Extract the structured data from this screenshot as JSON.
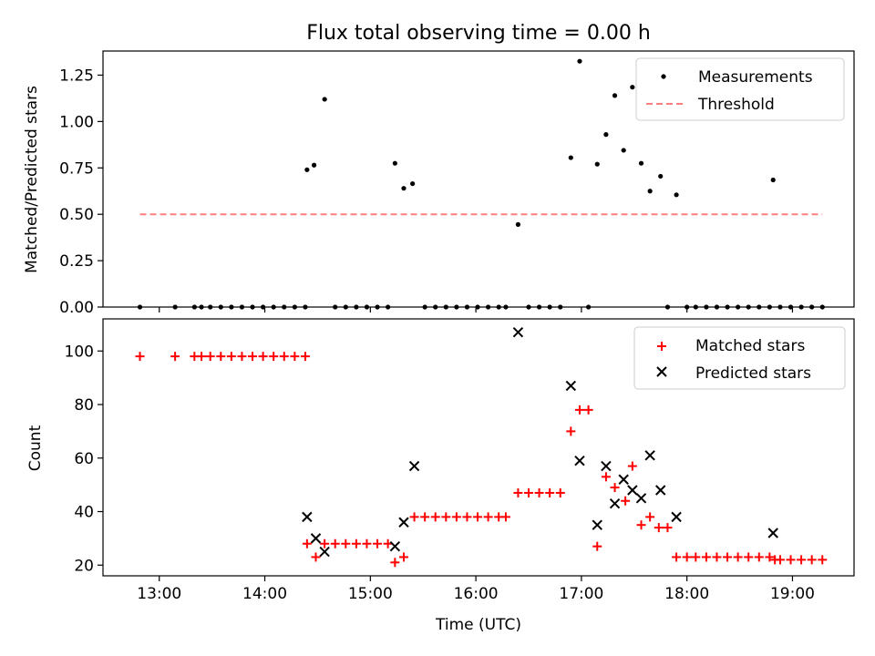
{
  "chart_data": [
    {
      "type": "scatter",
      "title": "Flux total observing time = 0.00 h",
      "ylabel": "Matched/Predicted stars",
      "xlabel": "",
      "xlim": [
        "12:28",
        "19:35"
      ],
      "ylim": [
        0,
        1.38
      ],
      "yticks": [
        0,
        0.25,
        0.5,
        0.75,
        1.0,
        1.25
      ],
      "ytick_labels": [
        "0.00",
        "0.25",
        "0.50",
        "0.75",
        "1.00",
        "1.25"
      ],
      "xticks": [
        "13:00",
        "14:00",
        "15:00",
        "16:00",
        "17:00",
        "18:00",
        "19:00"
      ],
      "grid": false,
      "legend": "top-right",
      "series": [
        {
          "name": "Measurements",
          "marker": "dot",
          "color": "#000000",
          "points": [
            [
              "12:49",
              0
            ],
            [
              "13:09",
              0
            ],
            [
              "13:20",
              0
            ],
            [
              "13:24",
              0
            ],
            [
              "13:29",
              0
            ],
            [
              "13:35",
              0
            ],
            [
              "13:41",
              0
            ],
            [
              "13:47",
              0
            ],
            [
              "13:53",
              0
            ],
            [
              "13:59",
              0
            ],
            [
              "14:05",
              0
            ],
            [
              "14:11",
              0
            ],
            [
              "14:17",
              0
            ],
            [
              "14:23",
              0
            ],
            [
              "14:24",
              0.74
            ],
            [
              "14:28",
              0.765
            ],
            [
              "14:34",
              1.12
            ],
            [
              "14:40",
              0
            ],
            [
              "14:46",
              0
            ],
            [
              "14:52",
              0
            ],
            [
              "14:58",
              0
            ],
            [
              "15:04",
              0
            ],
            [
              "15:10",
              0
            ],
            [
              "15:14",
              0.775
            ],
            [
              "15:19",
              0.64
            ],
            [
              "15:24",
              0.665
            ],
            [
              "15:31",
              0
            ],
            [
              "15:37",
              0
            ],
            [
              "15:43",
              0
            ],
            [
              "15:49",
              0
            ],
            [
              "15:55",
              0
            ],
            [
              "16:01",
              0
            ],
            [
              "16:07",
              0
            ],
            [
              "16:13",
              0
            ],
            [
              "16:17",
              0
            ],
            [
              "16:24",
              0.445
            ],
            [
              "16:30",
              0
            ],
            [
              "16:36",
              0
            ],
            [
              "16:42",
              0
            ],
            [
              "16:48",
              0
            ],
            [
              "16:54",
              0.805
            ],
            [
              "16:59",
              1.325
            ],
            [
              "17:04",
              0
            ],
            [
              "17:09",
              0.77
            ],
            [
              "17:14",
              0.93
            ],
            [
              "17:19",
              1.14
            ],
            [
              "17:24",
              0.845
            ],
            [
              "17:29",
              1.185
            ],
            [
              "17:34",
              0.775
            ],
            [
              "17:39",
              0.625
            ],
            [
              "17:45",
              0.705
            ],
            [
              "17:49",
              0
            ],
            [
              "17:54",
              0.605
            ],
            [
              "18:00",
              0
            ],
            [
              "18:05",
              0
            ],
            [
              "18:11",
              0
            ],
            [
              "18:17",
              0
            ],
            [
              "18:23",
              0
            ],
            [
              "18:29",
              0
            ],
            [
              "18:35",
              0
            ],
            [
              "18:41",
              0
            ],
            [
              "18:47",
              0
            ],
            [
              "18:49",
              0.685
            ],
            [
              "18:53",
              0
            ],
            [
              "18:59",
              0
            ],
            [
              "19:05",
              0
            ],
            [
              "19:11",
              0
            ],
            [
              "19:17",
              0
            ]
          ]
        },
        {
          "name": "Threshold",
          "marker": "dashed-line",
          "color": "#ff7f7f",
          "points": [
            [
              "12:49",
              0.5
            ],
            [
              "19:17",
              0.5
            ]
          ]
        }
      ]
    },
    {
      "type": "scatter",
      "title": "",
      "ylabel": "Count",
      "xlabel": "Time (UTC)",
      "xlim": [
        "12:28",
        "19:35"
      ],
      "ylim": [
        16,
        112
      ],
      "yticks": [
        20,
        40,
        60,
        80,
        100
      ],
      "ytick_labels": [
        "20",
        "40",
        "60",
        "80",
        "100"
      ],
      "xticks": [
        "13:00",
        "14:00",
        "15:00",
        "16:00",
        "17:00",
        "18:00",
        "19:00"
      ],
      "grid": false,
      "legend": "top-right",
      "series": [
        {
          "name": "Matched stars",
          "marker": "plus",
          "color": "#ff0000",
          "points": [
            [
              "12:49",
              98
            ],
            [
              "13:09",
              98
            ],
            [
              "13:20",
              98
            ],
            [
              "13:24",
              98
            ],
            [
              "13:29",
              98
            ],
            [
              "13:35",
              98
            ],
            [
              "13:41",
              98
            ],
            [
              "13:47",
              98
            ],
            [
              "13:53",
              98
            ],
            [
              "13:59",
              98
            ],
            [
              "14:05",
              98
            ],
            [
              "14:11",
              98
            ],
            [
              "14:17",
              98
            ],
            [
              "14:23",
              98
            ],
            [
              "14:24",
              28
            ],
            [
              "14:29",
              23
            ],
            [
              "14:34",
              28
            ],
            [
              "14:40",
              28
            ],
            [
              "14:46",
              28
            ],
            [
              "14:52",
              28
            ],
            [
              "14:58",
              28
            ],
            [
              "15:04",
              28
            ],
            [
              "15:10",
              28
            ],
            [
              "15:14",
              21
            ],
            [
              "15:19",
              23
            ],
            [
              "15:25",
              38
            ],
            [
              "15:31",
              38
            ],
            [
              "15:37",
              38
            ],
            [
              "15:43",
              38
            ],
            [
              "15:49",
              38
            ],
            [
              "15:55",
              38
            ],
            [
              "16:01",
              38
            ],
            [
              "16:07",
              38
            ],
            [
              "16:13",
              38
            ],
            [
              "16:17",
              38
            ],
            [
              "16:24",
              47
            ],
            [
              "16:30",
              47
            ],
            [
              "16:36",
              47
            ],
            [
              "16:42",
              47
            ],
            [
              "16:48",
              47
            ],
            [
              "16:54",
              70
            ],
            [
              "16:59",
              78
            ],
            [
              "17:04",
              78
            ],
            [
              "17:09",
              27
            ],
            [
              "17:14",
              53
            ],
            [
              "17:19",
              49
            ],
            [
              "17:25",
              44
            ],
            [
              "17:29",
              57
            ],
            [
              "17:34",
              35
            ],
            [
              "17:39",
              38
            ],
            [
              "17:44",
              34
            ],
            [
              "17:49",
              34
            ],
            [
              "17:54",
              23
            ],
            [
              "18:00",
              23
            ],
            [
              "18:05",
              23
            ],
            [
              "18:11",
              23
            ],
            [
              "18:17",
              23
            ],
            [
              "18:23",
              23
            ],
            [
              "18:29",
              23
            ],
            [
              "18:35",
              23
            ],
            [
              "18:41",
              23
            ],
            [
              "18:47",
              23
            ],
            [
              "18:50",
              22
            ],
            [
              "18:53",
              22
            ],
            [
              "18:59",
              22
            ],
            [
              "19:05",
              22
            ],
            [
              "19:11",
              22
            ],
            [
              "19:17",
              22
            ]
          ]
        },
        {
          "name": "Predicted stars",
          "marker": "x",
          "color": "#000000",
          "points": [
            [
              "14:24",
              38
            ],
            [
              "14:29",
              30
            ],
            [
              "14:34",
              25
            ],
            [
              "15:14",
              27
            ],
            [
              "15:19",
              36
            ],
            [
              "15:25",
              57
            ],
            [
              "16:24",
              107
            ],
            [
              "16:54",
              87
            ],
            [
              "16:59",
              59
            ],
            [
              "17:09",
              35
            ],
            [
              "17:14",
              57
            ],
            [
              "17:19",
              43
            ],
            [
              "17:24",
              52
            ],
            [
              "17:29",
              48
            ],
            [
              "17:34",
              45
            ],
            [
              "17:39",
              61
            ],
            [
              "17:45",
              48
            ],
            [
              "17:54",
              38
            ],
            [
              "18:49",
              32
            ]
          ]
        }
      ]
    }
  ]
}
